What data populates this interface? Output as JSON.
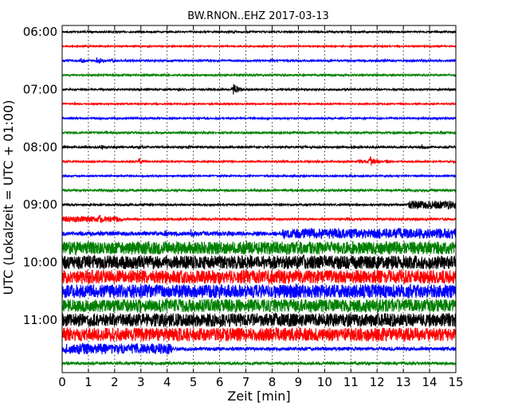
{
  "chart_data": {
    "type": "line",
    "title": "BW.RNON..EHZ 2017-03-13",
    "xlabel": "Zeit  [min]",
    "ylabel": "UTC (Lokalzeit = UTC + 01:00)",
    "xlim": [
      0,
      15
    ],
    "x_ticks": [
      "0",
      "1",
      "2",
      "3",
      "4",
      "5",
      "6",
      "7",
      "8",
      "9",
      "10",
      "11",
      "12",
      "13",
      "14",
      "15"
    ],
    "y_tick_labels": [
      "06:00",
      "07:00",
      "08:00",
      "09:00",
      "10:00",
      "11:00"
    ],
    "vertical_grid": "dotted",
    "colors": [
      "#000000",
      "#ff0000",
      "#0000ff",
      "#008000"
    ],
    "series": [
      {
        "start": "06:00",
        "color": "#000000",
        "amplitude": 0.12,
        "events": [
          {
            "t": 6.5,
            "amp": 0.25
          }
        ]
      },
      {
        "start": "06:15",
        "color": "#ff0000",
        "amplitude": 0.1,
        "events": []
      },
      {
        "start": "06:30",
        "color": "#0000ff",
        "amplitude": 0.14,
        "events": [
          {
            "t": 0.7,
            "amp": 0.45
          },
          {
            "t": 1.3,
            "amp": 0.6
          },
          {
            "t": 1.8,
            "amp": 0.4
          },
          {
            "t": 2.3,
            "amp": 0.25
          }
        ]
      },
      {
        "start": "06:45",
        "color": "#008000",
        "amplitude": 0.14,
        "events": []
      },
      {
        "start": "07:00",
        "color": "#000000",
        "amplitude": 0.12,
        "events": [
          {
            "t": 6.5,
            "amp": 1.1
          }
        ]
      },
      {
        "start": "07:15",
        "color": "#ff0000",
        "amplitude": 0.1,
        "events": []
      },
      {
        "start": "07:30",
        "color": "#0000ff",
        "amplitude": 0.12,
        "events": []
      },
      {
        "start": "07:45",
        "color": "#008000",
        "amplitude": 0.14,
        "events": []
      },
      {
        "start": "08:00",
        "color": "#000000",
        "amplitude": 0.14,
        "events": [
          {
            "t": 1.5,
            "amp": 0.35
          },
          {
            "t": 2.9,
            "amp": 0.45
          },
          {
            "t": 4.8,
            "amp": 0.35
          },
          {
            "t": 11.0,
            "amp": 0.35
          },
          {
            "t": 13.7,
            "amp": 0.35
          }
        ]
      },
      {
        "start": "08:15",
        "color": "#ff0000",
        "amplitude": 0.12,
        "events": [
          {
            "t": 2.9,
            "amp": 0.5
          },
          {
            "t": 11.3,
            "amp": 0.4
          },
          {
            "t": 11.7,
            "amp": 1.0
          },
          {
            "t": 12.3,
            "amp": 0.4
          }
        ]
      },
      {
        "start": "08:30",
        "color": "#0000ff",
        "amplitude": 0.12,
        "events": []
      },
      {
        "start": "08:45",
        "color": "#008000",
        "amplitude": 0.16,
        "events": []
      },
      {
        "start": "09:00",
        "color": "#000000",
        "amplitude": 0.14,
        "events": [],
        "high_from": 13.2,
        "high_amp": 0.6
      },
      {
        "start": "09:15",
        "color": "#ff0000",
        "amplitude": 0.45,
        "events": [
          {
            "t": 1.4,
            "amp": 0.9
          }
        ],
        "low_from": 2.3,
        "low_amp": 0.16
      },
      {
        "start": "09:30",
        "color": "#0000ff",
        "amplitude": 0.3,
        "events": [
          {
            "t": 3.9,
            "amp": 0.6
          },
          {
            "t": 4.9,
            "amp": 0.8
          }
        ],
        "high_from": 8.4,
        "high_amp": 0.75
      },
      {
        "start": "09:45",
        "color": "#008000",
        "amplitude": 0.95,
        "events": []
      },
      {
        "start": "10:00",
        "color": "#000000",
        "amplitude": 1.0,
        "events": [
          {
            "t": 9.2,
            "amp": 1.3
          }
        ]
      },
      {
        "start": "10:15",
        "color": "#ff0000",
        "amplitude": 1.0,
        "events": []
      },
      {
        "start": "10:30",
        "color": "#0000ff",
        "amplitude": 1.0,
        "events": []
      },
      {
        "start": "10:45",
        "color": "#008000",
        "amplitude": 0.95,
        "events": []
      },
      {
        "start": "11:00",
        "color": "#000000",
        "amplitude": 1.0,
        "events": []
      },
      {
        "start": "11:15",
        "color": "#ff0000",
        "amplitude": 1.0,
        "events": []
      },
      {
        "start": "11:30",
        "color": "#0000ff",
        "amplitude": 0.8,
        "events": [
          {
            "t": 3.8,
            "amp": 1.1
          },
          {
            "t": 13.7,
            "amp": 0.35
          }
        ],
        "low_from": 4.2,
        "low_amp": 0.25
      },
      {
        "start": "11:45",
        "color": "#008000",
        "amplitude": 0.2,
        "events": []
      }
    ]
  }
}
